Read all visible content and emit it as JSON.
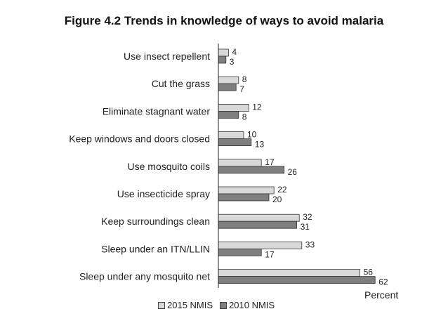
{
  "chart_data": {
    "type": "bar",
    "orientation": "horizontal",
    "title": "Figure 4.2  Trends in knowledge of ways to avoid malaria",
    "xlabel": "Percent",
    "categories": [
      "Use insect repellent",
      "Cut the grass",
      "Eliminate stagnant water",
      "Keep windows and doors closed",
      "Use mosquito coils",
      "Use insecticide spray",
      "Keep surroundings clean",
      "Sleep under an ITN/LLIN",
      "Sleep under any mosquito net"
    ],
    "series": [
      {
        "name": "2015 NMIS",
        "color": "#d9d9d9",
        "values": [
          4,
          8,
          12,
          10,
          17,
          22,
          32,
          33,
          56
        ]
      },
      {
        "name": "2010 NMIS",
        "color": "#7f7f7f",
        "values": [
          3,
          7,
          8,
          13,
          26,
          20,
          31,
          17,
          62
        ]
      }
    ],
    "xlim": [
      0,
      70
    ],
    "grid": false,
    "legend_position": "bottom"
  }
}
